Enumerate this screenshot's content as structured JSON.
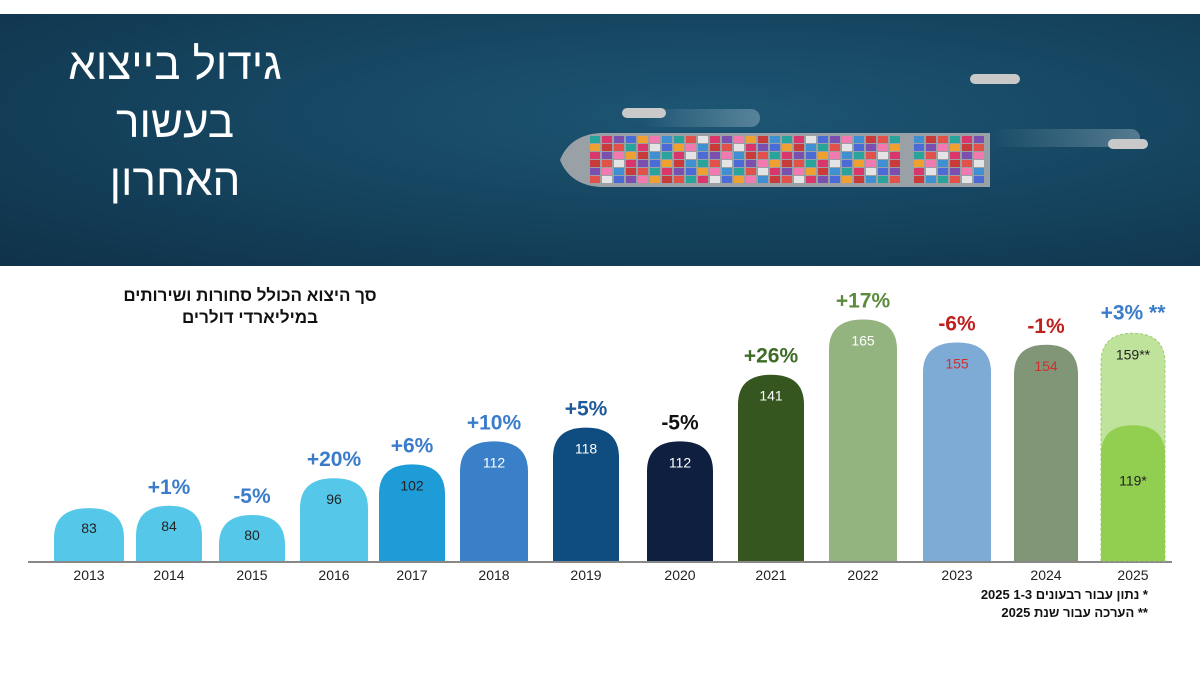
{
  "banner": {
    "title_lines": [
      "גידול בייצוא",
      "בעשור",
      "האחרון"
    ]
  },
  "chart_data": {
    "type": "bar",
    "title": [
      "סך היצוא הכולל סחורות ושירותים",
      "במיליארדי דולרים"
    ],
    "categories": [
      "2013",
      "2014",
      "2015",
      "2016",
      "2017",
      "2018",
      "2019",
      "2020",
      "2021",
      "2022",
      "2023",
      "2024",
      "2025"
    ],
    "values": [
      83,
      84,
      80,
      96,
      102,
      112,
      118,
      112,
      141,
      165,
      155,
      154,
      119
    ],
    "value_labels": [
      "83",
      "84",
      "80",
      "96",
      "102",
      "112",
      "118",
      "112",
      "141",
      "165",
      "155",
      "154",
      "119*"
    ],
    "changes": [
      "",
      "+1%",
      "-5%",
      "+20%",
      "+6%",
      "+10%",
      "+5%",
      "-5%",
      "+26%",
      "+17%",
      "-6%",
      "-1%",
      "+3% **"
    ],
    "estimate": {
      "category": "2025",
      "value": 159,
      "label": "159**"
    },
    "bar_colors": [
      "#55c8ea",
      "#55c8ea",
      "#55c8ea",
      "#55c8ea",
      "#1e9cd8",
      "#3a80c8",
      "#0f4c80",
      "#0f1f40",
      "#36561f",
      "#93b47f",
      "#7eaad6",
      "#809677",
      "#92cf50"
    ],
    "value_label_colors": [
      "#222",
      "#222",
      "#222",
      "#222",
      "#222",
      "#fff",
      "#fff",
      "#fff",
      "#fff",
      "#fff",
      "#d03030",
      "#d03030",
      "#222"
    ],
    "change_colors": [
      "#3a7cc9",
      "#3a7cc9",
      "#3a7cc9",
      "#3a7cc9",
      "#3a7cc9",
      "#3a7cc9",
      "#1f5a9a",
      "#111",
      "#3e6b25",
      "#5b8a3a",
      "#c0201e",
      "#c0201e",
      "#3a7cc9"
    ],
    "estimate_color": "#bfe39a"
  },
  "footnotes": [
    "* נתון עבור רבעונים 1-3 2025",
    "** הערכה עבור שנת 2025"
  ]
}
